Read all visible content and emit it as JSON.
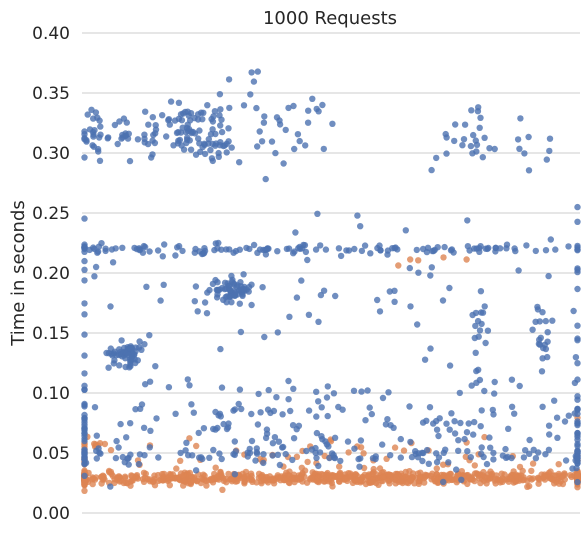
{
  "chart_data": {
    "type": "scatter",
    "title": "1000 Requests",
    "xlabel": "",
    "ylabel": "Time in seconds",
    "ylim": [
      0.0,
      0.4
    ],
    "yticks": [
      "0.00",
      "0.05",
      "0.10",
      "0.15",
      "0.20",
      "0.25",
      "0.30",
      "0.35",
      "0.40"
    ],
    "xlim": [
      0,
      1000
    ],
    "grid": true,
    "colors": {
      "series_a": "#4c72b0",
      "series_b": "#dd8452"
    },
    "series": [
      {
        "color": "#4c72b0",
        "clusters": [
          {
            "x": 25,
            "y": 0.315,
            "sx": 12,
            "sy": 0.012,
            "n": 28
          },
          {
            "x": 85,
            "y": 0.312,
            "sx": 8,
            "sy": 0.01,
            "n": 14
          },
          {
            "x": 135,
            "y": 0.318,
            "sx": 10,
            "sy": 0.012,
            "n": 16
          },
          {
            "x": 205,
            "y": 0.318,
            "sx": 22,
            "sy": 0.012,
            "n": 45
          },
          {
            "x": 265,
            "y": 0.315,
            "sx": 22,
            "sy": 0.012,
            "n": 40
          },
          {
            "x": 340,
            "y": 0.335,
            "sx": 40,
            "sy": 0.02,
            "n": 14
          },
          {
            "x": 430,
            "y": 0.32,
            "sx": 45,
            "sy": 0.015,
            "n": 25
          },
          {
            "x": 780,
            "y": 0.32,
            "sx": 30,
            "sy": 0.015,
            "n": 22
          },
          {
            "x": 900,
            "y": 0.31,
            "sx": 40,
            "sy": 0.012,
            "n": 10
          },
          {
            "x": 90,
            "y": 0.133,
            "sx": 18,
            "sy": 0.005,
            "n": 60
          },
          {
            "x": 305,
            "y": 0.186,
            "sx": 18,
            "sy": 0.005,
            "n": 65
          },
          {
            "x": 800,
            "y": 0.155,
            "sx": 10,
            "sy": 0.02,
            "n": 20
          },
          {
            "x": 925,
            "y": 0.14,
            "sx": 10,
            "sy": 0.015,
            "n": 18
          },
          {
            "x": 35,
            "y": 0.22,
            "sx": 18,
            "sy": 0.002,
            "n": 10
          },
          {
            "x": 235,
            "y": 0.22,
            "sx": 200,
            "sy": 0.002,
            "n": 60
          },
          {
            "x": 700,
            "y": 0.22,
            "sx": 200,
            "sy": 0.002,
            "n": 60
          },
          {
            "x": 500,
            "y": 0.19,
            "sx": 350,
            "sy": 0.04,
            "n": 90
          },
          {
            "x": 500,
            "y": 0.075,
            "sx": 380,
            "sy": 0.02,
            "n": 220
          },
          {
            "x": 500,
            "y": 0.048,
            "sx": 380,
            "sy": 0.004,
            "n": 120
          }
        ]
      },
      {
        "color": "#dd8452",
        "clusters": [
          {
            "x": 500,
            "y": 0.029,
            "sx": 430,
            "sy": 0.0025,
            "n": 850
          },
          {
            "x": 500,
            "y": 0.045,
            "sx": 350,
            "sy": 0.01,
            "n": 90
          },
          {
            "x": 30,
            "y": 0.06,
            "sx": 15,
            "sy": 0.004,
            "n": 8
          },
          {
            "x": 640,
            "y": 0.21,
            "sx": 100,
            "sy": 0.003,
            "n": 5
          }
        ]
      }
    ]
  }
}
